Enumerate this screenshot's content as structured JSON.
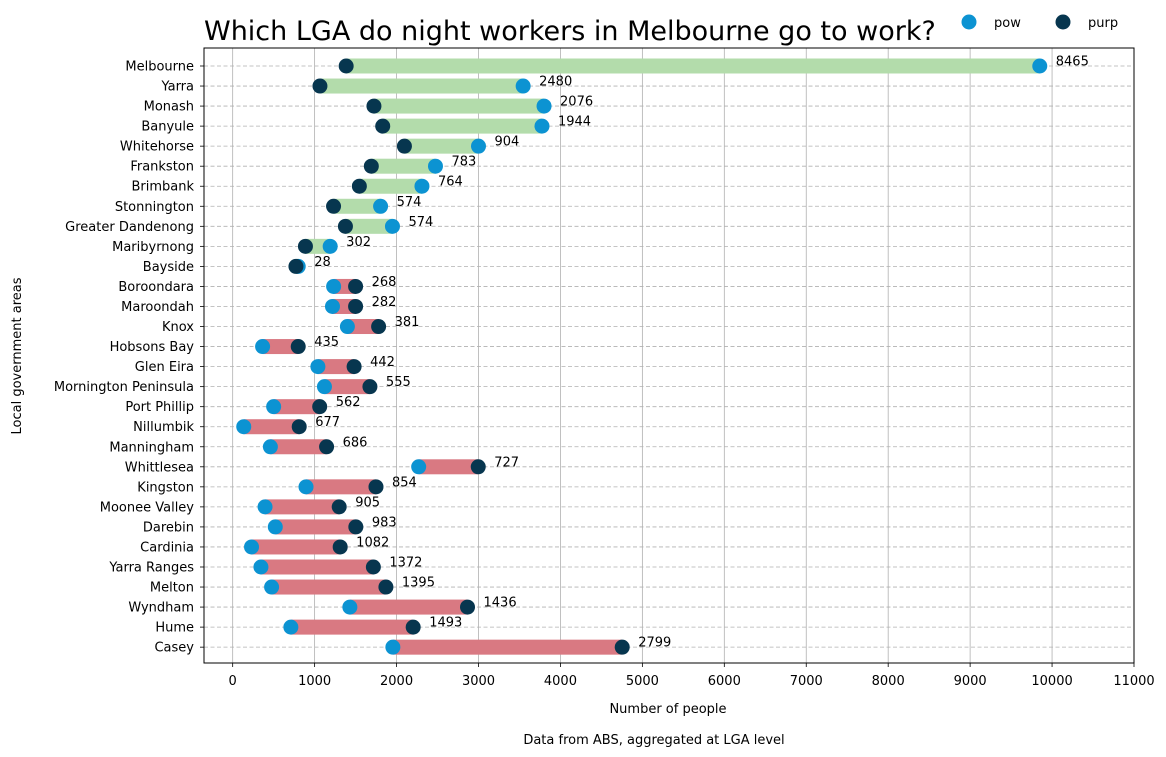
{
  "chart_data": {
    "type": "dumbbell",
    "title": "Which LGA do night workers in Melbourne go to work?",
    "xlabel": "Number of people",
    "ylabel": "Local government areas",
    "caption": "Data from ABS, aggregated at LGA level",
    "xlim": [
      0,
      11000
    ],
    "xticks": [
      0,
      1000,
      2000,
      3000,
      4000,
      5000,
      6000,
      7000,
      8000,
      9000,
      10000,
      11000
    ],
    "grid": true,
    "legend_position": "top-right",
    "colors": {
      "pow": "#0c93d2",
      "purp": "#07364f",
      "increase_bar": "#b3dcab",
      "decrease_bar": "#d97982"
    },
    "series": [
      {
        "name": "pow",
        "key": "pow"
      },
      {
        "name": "purp",
        "key": "purp"
      }
    ],
    "categories": [
      {
        "name": "Melbourne",
        "pow": 9850,
        "purp": 1385,
        "diff": "8465"
      },
      {
        "name": "Yarra",
        "pow": 3545,
        "purp": 1065,
        "diff": "2480"
      },
      {
        "name": "Monash",
        "pow": 3800,
        "purp": 1724,
        "diff": "2076"
      },
      {
        "name": "Banyule",
        "pow": 3775,
        "purp": 1831,
        "diff": "1944"
      },
      {
        "name": "Whitehorse",
        "pow": 3000,
        "purp": 2096,
        "diff": "904"
      },
      {
        "name": "Frankston",
        "pow": 2475,
        "purp": 1692,
        "diff": "783"
      },
      {
        "name": "Brimbank",
        "pow": 2310,
        "purp": 1546,
        "diff": "764"
      },
      {
        "name": "Stonnington",
        "pow": 1805,
        "purp": 1231,
        "diff": "574"
      },
      {
        "name": "Greater Dandenong",
        "pow": 1950,
        "purp": 1376,
        "diff": "574"
      },
      {
        "name": "Maribyrnong",
        "pow": 1190,
        "purp": 888,
        "diff": "302"
      },
      {
        "name": "Bayside",
        "pow": 800,
        "purp": 772,
        "diff": "28"
      },
      {
        "name": "Boroondara",
        "pow": 1232,
        "purp": 1500,
        "diff": "268"
      },
      {
        "name": "Maroondah",
        "pow": 1218,
        "purp": 1500,
        "diff": "282"
      },
      {
        "name": "Knox",
        "pow": 1400,
        "purp": 1781,
        "diff": "381"
      },
      {
        "name": "Hobsons Bay",
        "pow": 365,
        "purp": 800,
        "diff": "435"
      },
      {
        "name": "Glen Eira",
        "pow": 1040,
        "purp": 1482,
        "diff": "442"
      },
      {
        "name": "Mornington Peninsula",
        "pow": 1120,
        "purp": 1675,
        "diff": "555"
      },
      {
        "name": "Port Phillip",
        "pow": 500,
        "purp": 1062,
        "diff": "562"
      },
      {
        "name": "Nillumbik",
        "pow": 135,
        "purp": 812,
        "diff": "677"
      },
      {
        "name": "Manningham",
        "pow": 460,
        "purp": 1146,
        "diff": "686"
      },
      {
        "name": "Whittlesea",
        "pow": 2270,
        "purp": 2997,
        "diff": "727"
      },
      {
        "name": "Kingston",
        "pow": 895,
        "purp": 1749,
        "diff": "854"
      },
      {
        "name": "Moonee Valley",
        "pow": 395,
        "purp": 1300,
        "diff": "905"
      },
      {
        "name": "Darebin",
        "pow": 520,
        "purp": 1503,
        "diff": "983"
      },
      {
        "name": "Cardinia",
        "pow": 230,
        "purp": 1312,
        "diff": "1082"
      },
      {
        "name": "Yarra Ranges",
        "pow": 345,
        "purp": 1717,
        "diff": "1372"
      },
      {
        "name": "Melton",
        "pow": 475,
        "purp": 1870,
        "diff": "1395"
      },
      {
        "name": "Wyndham",
        "pow": 1430,
        "purp": 2866,
        "diff": "1436"
      },
      {
        "name": "Hume",
        "pow": 710,
        "purp": 2203,
        "diff": "1493"
      },
      {
        "name": "Casey",
        "pow": 1955,
        "purp": 4754,
        "diff": "2799"
      }
    ]
  }
}
